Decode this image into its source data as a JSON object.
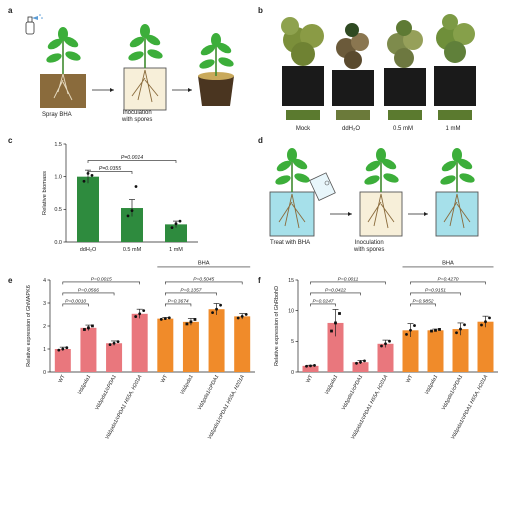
{
  "panels": {
    "a": {
      "letter": "a",
      "step1": "Spray BHA",
      "step2": "Inoculation\nwith spores"
    },
    "b": {
      "letter": "b",
      "labels": [
        "Mock",
        "ddH₂O",
        "0.5 mM",
        "1 mM"
      ]
    },
    "c": {
      "letter": "c"
    },
    "d": {
      "letter": "d",
      "step1": "Treat with BHA",
      "step2": "Inoculation\nwith spores"
    },
    "e": {
      "letter": "e"
    },
    "f": {
      "letter": "f"
    }
  },
  "colors": {
    "green": "#2e8b3e",
    "pink": "#e9777d",
    "orange": "#f08b2a",
    "soil": "#8a6b3c",
    "water": "#a6e0ea"
  },
  "chart_data": [
    {
      "id": "c",
      "type": "bar",
      "categories": [
        "ddH₂O",
        "0.5 mM",
        "1 mM"
      ],
      "values": [
        1.0,
        0.52,
        0.27
      ],
      "errors": [
        0.1,
        0.13,
        0.05
      ],
      "points": [
        [
          0.93,
          1.05,
          1.02
        ],
        [
          0.4,
          0.48,
          0.85
        ],
        [
          0.22,
          0.28,
          0.32
        ]
      ],
      "ylabel": "Relative biomass",
      "ylim": [
        0,
        1.5
      ],
      "yticks": [
        "0.0",
        "0.5",
        "1.0",
        "1.5"
      ],
      "brackets": [
        {
          "from": 0,
          "to": 1,
          "label": "P=0.0355"
        },
        {
          "from": 0,
          "to": 2,
          "label": "P=0.0014"
        }
      ],
      "grid": false
    },
    {
      "id": "e",
      "type": "bar",
      "categories": [
        "WT",
        "VdΔpda1",
        "VdΔpda1/cPDA1",
        "VdΔpda1/cPDA1 H55A, H201A",
        "WT",
        "VdΔpda1",
        "VdΔpda1/cPDA1",
        "VdΔpda1/cPDA1 H55A, H201A"
      ],
      "values": [
        1.0,
        1.92,
        1.25,
        2.53,
        2.32,
        2.18,
        2.73,
        2.42
      ],
      "errors": [
        0.08,
        0.12,
        0.1,
        0.2,
        0.05,
        0.15,
        0.25,
        0.12
      ],
      "colors": [
        "pink",
        "pink",
        "pink",
        "pink",
        "orange",
        "orange",
        "orange",
        "orange"
      ],
      "ylabel": "Relative expression of GhMAPK6",
      "ylim": [
        0,
        4
      ],
      "yticks": [
        "0",
        "1",
        "2",
        "3",
        "4"
      ],
      "group_label": "BHA",
      "brackets": [
        {
          "from": 0,
          "to": 1,
          "label": "P=0.0010"
        },
        {
          "from": 0,
          "to": 2,
          "label": "P=0.0566"
        },
        {
          "from": 0,
          "to": 3,
          "label": "P=0.0015"
        },
        {
          "from": 4,
          "to": 5,
          "label": "P=0.3674"
        },
        {
          "from": 4,
          "to": 6,
          "label": "P=0.1357"
        },
        {
          "from": 4,
          "to": 7,
          "label": "P=0.5045"
        }
      ]
    },
    {
      "id": "f",
      "type": "bar",
      "categories": [
        "WT",
        "VdΔpda1",
        "VdΔpda1/cPDA1",
        "VdΔpda1/cPDA1 H55A, H201A",
        "WT",
        "VdΔpda1",
        "VdΔpda1/cPDA1",
        "VdΔpda1/cPDA1 H55A, H201A"
      ],
      "values": [
        1.0,
        8.0,
        1.6,
        4.6,
        6.8,
        6.8,
        7.0,
        8.2
      ],
      "errors": [
        0.1,
        2.2,
        0.3,
        0.6,
        1.1,
        0.2,
        1.0,
        0.9
      ],
      "colors": [
        "pink",
        "pink",
        "pink",
        "pink",
        "orange",
        "orange",
        "orange",
        "orange"
      ],
      "ylabel": "Relative expression of GhRbohD",
      "ylim": [
        0,
        15
      ],
      "yticks": [
        "0",
        "5",
        "10",
        "15"
      ],
      "group_label": "BHA",
      "brackets": [
        {
          "from": 0,
          "to": 1,
          "label": "P=0.0247"
        },
        {
          "from": 0,
          "to": 2,
          "label": "P=0.0422"
        },
        {
          "from": 0,
          "to": 3,
          "label": "P=0.0011"
        },
        {
          "from": 4,
          "to": 5,
          "label": "P=0.9852"
        },
        {
          "from": 4,
          "to": 6,
          "label": "P=0.9151"
        },
        {
          "from": 4,
          "to": 7,
          "label": "P=0.4270"
        }
      ]
    }
  ]
}
